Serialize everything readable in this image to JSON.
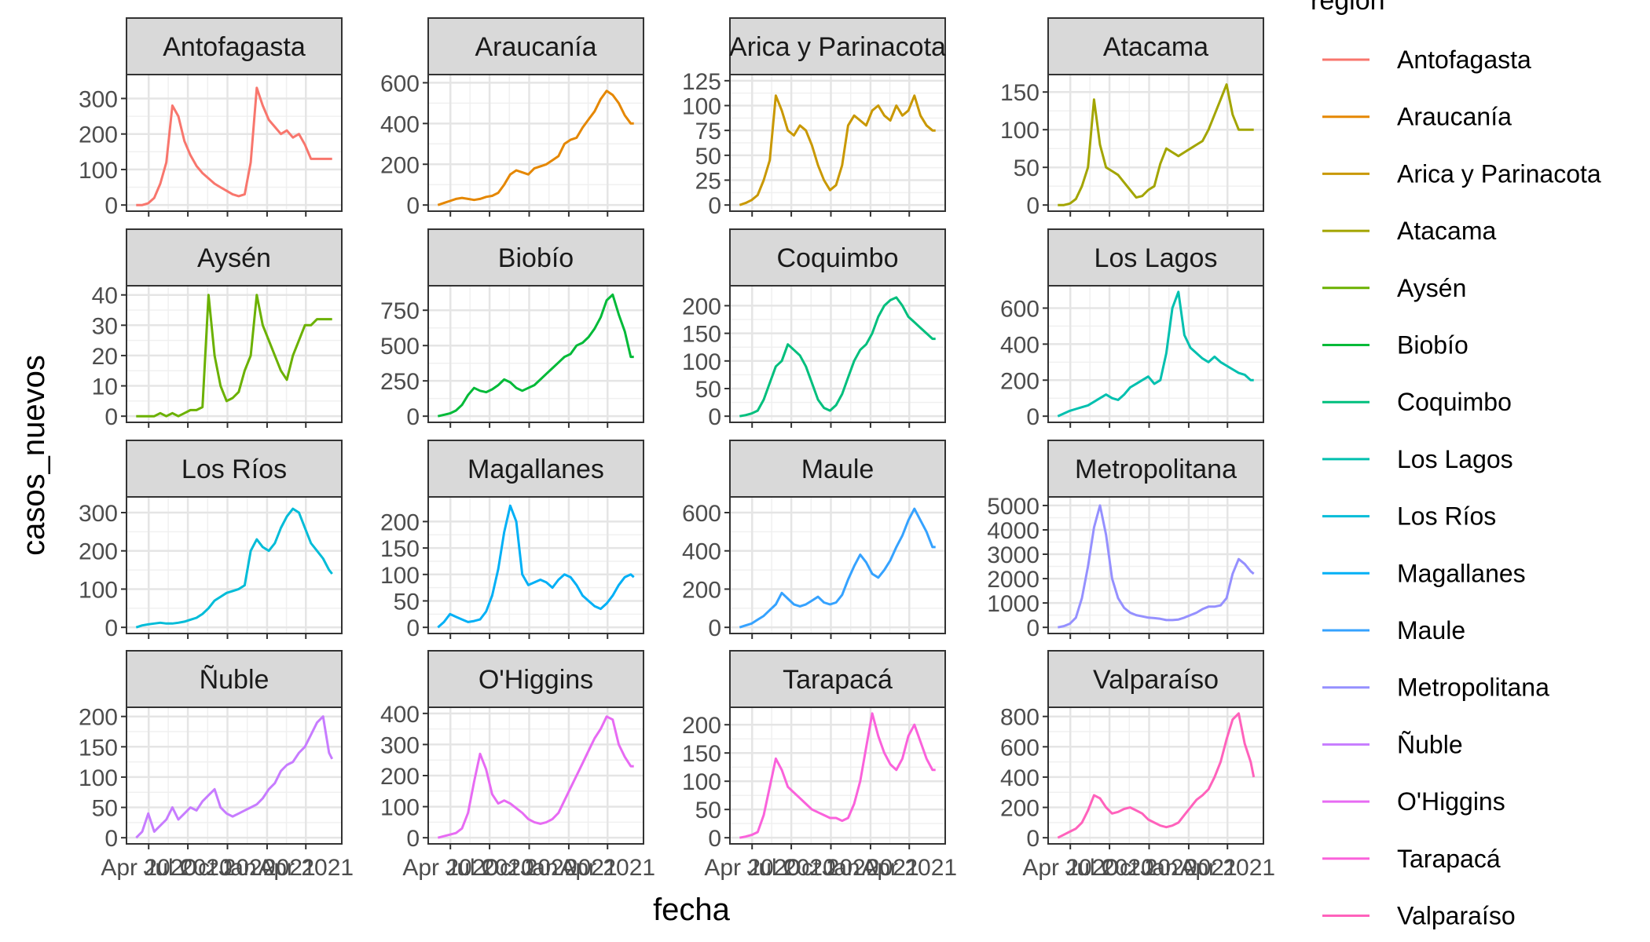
{
  "figure": {
    "xlabel": "fecha",
    "ylabel": "casos_nuevos",
    "legend_title": "region",
    "legend_position": "right",
    "theme": "bw",
    "facet_layout": "4 columns x 4 rows, free y scales"
  },
  "chart_data": {
    "type": "line",
    "x_type": "date",
    "x_range": [
      "2020-03-03",
      "2021-06-01"
    ],
    "x_tick_labels": [
      "Apr 2020",
      "Jul 2020",
      "Oct 2020",
      "Jan 2021",
      "Apr 2021"
    ],
    "x_tick_dates": [
      "2020-04-01",
      "2020-07-01",
      "2020-10-01",
      "2021-01-01",
      "2021-04-01"
    ],
    "grid": true,
    "x": [
      "2020-03-03",
      "2020-03-17",
      "2020-03-31",
      "2020-04-14",
      "2020-04-28",
      "2020-05-12",
      "2020-05-26",
      "2020-06-09",
      "2020-06-23",
      "2020-07-07",
      "2020-07-21",
      "2020-08-04",
      "2020-08-18",
      "2020-09-01",
      "2020-09-15",
      "2020-09-29",
      "2020-10-13",
      "2020-10-27",
      "2020-11-10",
      "2020-11-24",
      "2020-12-08",
      "2020-12-22",
      "2021-01-05",
      "2021-01-19",
      "2021-02-02",
      "2021-02-16",
      "2021-03-02",
      "2021-03-16",
      "2021-03-30",
      "2021-04-13",
      "2021-04-27",
      "2021-05-11",
      "2021-05-25",
      "2021-06-01"
    ],
    "series": [
      {
        "name": "Antofagasta",
        "color": "#F8766D",
        "y_ticks": [
          0,
          100,
          200,
          300
        ],
        "ylim": [
          0,
          350
        ],
        "values": [
          0,
          0,
          5,
          20,
          60,
          120,
          280,
          250,
          180,
          140,
          110,
          90,
          75,
          60,
          50,
          40,
          30,
          25,
          30,
          120,
          330,
          280,
          240,
          220,
          200,
          210,
          190,
          200,
          170,
          130,
          130,
          130,
          130,
          130
        ]
      },
      {
        "name": "Araucanía",
        "color": "#E58700",
        "y_ticks": [
          0,
          200,
          400,
          600
        ],
        "ylim": [
          0,
          610
        ],
        "values": [
          0,
          10,
          20,
          30,
          35,
          30,
          25,
          30,
          40,
          45,
          60,
          100,
          150,
          170,
          160,
          150,
          180,
          190,
          200,
          220,
          240,
          300,
          320,
          330,
          380,
          420,
          460,
          520,
          560,
          540,
          500,
          440,
          400,
          400
        ]
      },
      {
        "name": "Arica y Parinacota",
        "color": "#C99800",
        "y_ticks": [
          0,
          25,
          50,
          75,
          100,
          125
        ],
        "ylim": [
          0,
          125
        ],
        "values": [
          0,
          2,
          5,
          10,
          25,
          45,
          110,
          95,
          75,
          70,
          80,
          75,
          60,
          40,
          25,
          15,
          20,
          40,
          80,
          90,
          85,
          80,
          95,
          100,
          90,
          85,
          100,
          90,
          95,
          110,
          90,
          80,
          75,
          75
        ]
      },
      {
        "name": "Atacama",
        "color": "#A3A500",
        "y_ticks": [
          0,
          50,
          100,
          150
        ],
        "ylim": [
          0,
          165
        ],
        "values": [
          0,
          0,
          2,
          8,
          25,
          50,
          140,
          80,
          50,
          45,
          40,
          30,
          20,
          10,
          12,
          20,
          25,
          55,
          75,
          70,
          65,
          70,
          75,
          80,
          85,
          100,
          120,
          140,
          160,
          120,
          100,
          100,
          100,
          100
        ]
      },
      {
        "name": "Aysén",
        "color": "#6BB100",
        "y_ticks": [
          0,
          10,
          20,
          30,
          40
        ],
        "ylim": [
          0,
          41
        ],
        "values": [
          0,
          0,
          0,
          0,
          1,
          0,
          1,
          0,
          1,
          2,
          2,
          3,
          40,
          20,
          10,
          5,
          6,
          8,
          15,
          20,
          40,
          30,
          25,
          20,
          15,
          12,
          20,
          25,
          30,
          30,
          32,
          32,
          32,
          32
        ]
      },
      {
        "name": "Biobío",
        "color": "#00BA38",
        "y_ticks": [
          0,
          250,
          500,
          750
        ],
        "ylim": [
          0,
          880
        ],
        "values": [
          0,
          10,
          20,
          40,
          80,
          150,
          200,
          180,
          170,
          190,
          220,
          260,
          240,
          200,
          180,
          200,
          220,
          260,
          300,
          340,
          380,
          420,
          440,
          500,
          520,
          560,
          620,
          700,
          820,
          860,
          720,
          600,
          420,
          420
        ]
      },
      {
        "name": "Coquimbo",
        "color": "#00BF7D",
        "y_ticks": [
          0,
          50,
          100,
          150,
          200
        ],
        "ylim": [
          0,
          225
        ],
        "values": [
          0,
          2,
          5,
          10,
          30,
          60,
          90,
          100,
          130,
          120,
          110,
          90,
          60,
          30,
          15,
          10,
          20,
          40,
          70,
          100,
          120,
          130,
          150,
          180,
          200,
          210,
          215,
          200,
          180,
          170,
          160,
          150,
          140,
          140
        ]
      },
      {
        "name": "Los Lagos",
        "color": "#00C0AF",
        "y_ticks": [
          0,
          200,
          400,
          600
        ],
        "ylim": [
          0,
          690
        ],
        "values": [
          0,
          15,
          30,
          40,
          50,
          60,
          80,
          100,
          120,
          100,
          90,
          120,
          160,
          180,
          200,
          220,
          180,
          200,
          350,
          600,
          690,
          450,
          380,
          350,
          320,
          300,
          330,
          300,
          280,
          260,
          240,
          230,
          200,
          200
        ]
      },
      {
        "name": "Los Ríos",
        "color": "#00BCD8",
        "y_ticks": [
          0,
          100,
          200,
          300
        ],
        "ylim": [
          0,
          325
        ],
        "values": [
          0,
          5,
          8,
          10,
          12,
          10,
          10,
          12,
          15,
          20,
          25,
          35,
          50,
          70,
          80,
          90,
          95,
          100,
          110,
          200,
          230,
          210,
          200,
          220,
          260,
          290,
          310,
          300,
          260,
          220,
          200,
          180,
          150,
          140
        ]
      },
      {
        "name": "Magallanes",
        "color": "#00B0F6",
        "y_ticks": [
          0,
          50,
          100,
          150,
          200
        ],
        "ylim": [
          0,
          235
        ],
        "values": [
          0,
          10,
          25,
          20,
          15,
          10,
          12,
          15,
          30,
          60,
          110,
          180,
          230,
          200,
          100,
          80,
          85,
          90,
          85,
          75,
          90,
          100,
          95,
          80,
          60,
          50,
          40,
          35,
          45,
          60,
          80,
          95,
          100,
          95
        ]
      },
      {
        "name": "Maule",
        "color": "#35A2FF",
        "y_ticks": [
          0,
          200,
          400,
          600
        ],
        "ylim": [
          0,
          650
        ],
        "values": [
          0,
          10,
          20,
          40,
          60,
          90,
          120,
          180,
          150,
          120,
          110,
          120,
          140,
          160,
          130,
          120,
          130,
          170,
          250,
          320,
          380,
          340,
          280,
          260,
          300,
          350,
          420,
          480,
          560,
          620,
          560,
          500,
          420,
          420
        ]
      },
      {
        "name": "Metropolitana",
        "color": "#9590FF",
        "y_ticks": [
          0,
          1000,
          2000,
          3000,
          4000,
          5000
        ],
        "ylim": [
          0,
          5100
        ],
        "values": [
          0,
          50,
          150,
          400,
          1200,
          2500,
          4100,
          5000,
          3800,
          2000,
          1200,
          800,
          600,
          500,
          450,
          400,
          380,
          350,
          300,
          300,
          320,
          400,
          500,
          600,
          750,
          850,
          850,
          900,
          1200,
          2200,
          2800,
          2600,
          2300,
          2200
        ]
      },
      {
        "name": "Ñuble",
        "color": "#C77CFF",
        "y_ticks": [
          0,
          50,
          100,
          150,
          200
        ],
        "ylim": [
          0,
          205
        ],
        "values": [
          0,
          10,
          40,
          10,
          20,
          30,
          50,
          30,
          40,
          50,
          45,
          60,
          70,
          80,
          50,
          40,
          35,
          40,
          45,
          50,
          55,
          65,
          80,
          90,
          110,
          120,
          125,
          140,
          150,
          170,
          190,
          200,
          140,
          130
        ]
      },
      {
        "name": "O'Higgins",
        "color": "#E76BF3",
        "y_ticks": [
          0,
          100,
          200,
          300,
          400
        ],
        "ylim": [
          0,
          400
        ],
        "values": [
          0,
          5,
          10,
          15,
          30,
          80,
          180,
          270,
          220,
          140,
          110,
          120,
          110,
          95,
          80,
          60,
          50,
          45,
          50,
          60,
          80,
          120,
          160,
          200,
          240,
          280,
          320,
          350,
          390,
          380,
          300,
          260,
          230,
          230
        ]
      },
      {
        "name": "Tarapacá",
        "color": "#FA62DB",
        "y_ticks": [
          0,
          50,
          100,
          150,
          200
        ],
        "ylim": [
          0,
          220
        ],
        "values": [
          0,
          2,
          5,
          10,
          40,
          90,
          140,
          120,
          90,
          80,
          70,
          60,
          50,
          45,
          40,
          35,
          35,
          30,
          35,
          60,
          100,
          160,
          220,
          180,
          150,
          130,
          120,
          140,
          180,
          200,
          170,
          140,
          120,
          120
        ]
      },
      {
        "name": "Valparaíso",
        "color": "#FF62BC",
        "y_ticks": [
          0,
          200,
          400,
          600,
          800
        ],
        "ylim": [
          0,
          820
        ],
        "values": [
          0,
          20,
          40,
          60,
          100,
          180,
          280,
          260,
          200,
          160,
          170,
          190,
          200,
          180,
          160,
          120,
          100,
          80,
          70,
          80,
          100,
          150,
          200,
          250,
          280,
          320,
          400,
          500,
          650,
          780,
          820,
          620,
          500,
          400
        ]
      }
    ]
  }
}
